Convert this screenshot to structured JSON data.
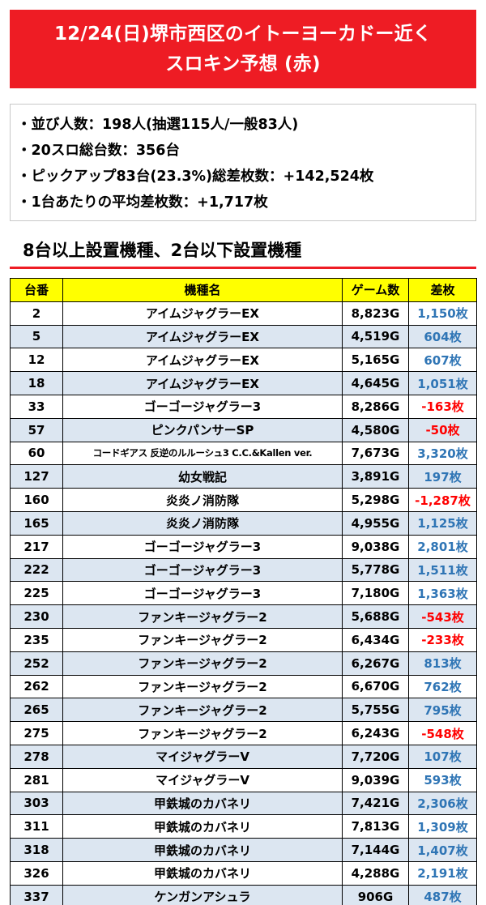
{
  "title": {
    "line1": "12/24(日)堺市西区のイトーヨーカドー近く",
    "line2": "スロキン予想 (赤)"
  },
  "summary": [
    "・並び人数：198人(抽選115人/一般83人)",
    "・20スロ総台数：356台",
    "・ピックアップ83台(23.3%)総差枚数：+142,524枚",
    "・1台あたりの平均差枚数：+1,717枚"
  ],
  "section_heading": "8台以上設置機種、2台以下設置機種",
  "table": {
    "headers": [
      "台番",
      "機種名",
      "ゲーム数",
      "差枚"
    ],
    "rows": [
      {
        "no": "2",
        "name": "アイムジャグラーEX",
        "games": "8,823G",
        "diff": "1,150枚",
        "sign": "pos"
      },
      {
        "no": "5",
        "name": "アイムジャグラーEX",
        "games": "4,519G",
        "diff": "604枚",
        "sign": "pos"
      },
      {
        "no": "12",
        "name": "アイムジャグラーEX",
        "games": "5,165G",
        "diff": "607枚",
        "sign": "pos"
      },
      {
        "no": "18",
        "name": "アイムジャグラーEX",
        "games": "4,645G",
        "diff": "1,051枚",
        "sign": "pos"
      },
      {
        "no": "33",
        "name": "ゴーゴージャグラー3",
        "games": "8,286G",
        "diff": "-163枚",
        "sign": "neg"
      },
      {
        "no": "57",
        "name": "ピンクパンサーSP",
        "games": "4,580G",
        "diff": "-50枚",
        "sign": "neg"
      },
      {
        "no": "60",
        "name": "コードギアス 反逆のルルーシュ3 C.C.&Kallen ver.",
        "games": "7,673G",
        "diff": "3,320枚",
        "sign": "pos",
        "small": true
      },
      {
        "no": "127",
        "name": "幼女戦記",
        "games": "3,891G",
        "diff": "197枚",
        "sign": "pos"
      },
      {
        "no": "160",
        "name": "炎炎ノ消防隊",
        "games": "5,298G",
        "diff": "-1,287枚",
        "sign": "neg"
      },
      {
        "no": "165",
        "name": "炎炎ノ消防隊",
        "games": "4,955G",
        "diff": "1,125枚",
        "sign": "pos"
      },
      {
        "no": "217",
        "name": "ゴーゴージャグラー3",
        "games": "9,038G",
        "diff": "2,801枚",
        "sign": "pos"
      },
      {
        "no": "222",
        "name": "ゴーゴージャグラー3",
        "games": "5,778G",
        "diff": "1,511枚",
        "sign": "pos"
      },
      {
        "no": "225",
        "name": "ゴーゴージャグラー3",
        "games": "7,180G",
        "diff": "1,363枚",
        "sign": "pos"
      },
      {
        "no": "230",
        "name": "ファンキージャグラー2",
        "games": "5,688G",
        "diff": "-543枚",
        "sign": "neg"
      },
      {
        "no": "235",
        "name": "ファンキージャグラー2",
        "games": "6,434G",
        "diff": "-233枚",
        "sign": "neg"
      },
      {
        "no": "252",
        "name": "ファンキージャグラー2",
        "games": "6,267G",
        "diff": "813枚",
        "sign": "pos"
      },
      {
        "no": "262",
        "name": "ファンキージャグラー2",
        "games": "6,670G",
        "diff": "762枚",
        "sign": "pos"
      },
      {
        "no": "265",
        "name": "ファンキージャグラー2",
        "games": "5,755G",
        "diff": "795枚",
        "sign": "pos"
      },
      {
        "no": "275",
        "name": "ファンキージャグラー2",
        "games": "6,243G",
        "diff": "-548枚",
        "sign": "neg"
      },
      {
        "no": "278",
        "name": "マイジャグラーV",
        "games": "7,720G",
        "diff": "107枚",
        "sign": "pos"
      },
      {
        "no": "281",
        "name": "マイジャグラーV",
        "games": "9,039G",
        "diff": "593枚",
        "sign": "pos"
      },
      {
        "no": "303",
        "name": "甲鉄城のカバネリ",
        "games": "7,421G",
        "diff": "2,306枚",
        "sign": "pos"
      },
      {
        "no": "311",
        "name": "甲鉄城のカバネリ",
        "games": "7,813G",
        "diff": "1,309枚",
        "sign": "pos"
      },
      {
        "no": "318",
        "name": "甲鉄城のカバネリ",
        "games": "7,144G",
        "diff": "1,407枚",
        "sign": "pos"
      },
      {
        "no": "326",
        "name": "甲鉄城のカバネリ",
        "games": "4,288G",
        "diff": "2,191枚",
        "sign": "pos"
      },
      {
        "no": "337",
        "name": "ケンガンアシュラ",
        "games": "906G",
        "diff": "487枚",
        "sign": "pos"
      }
    ]
  },
  "colors": {
    "banner": "#ee1c24",
    "header_fill": "#ffff00",
    "row_shade": "#dce6f1",
    "positive": "#2f75b5",
    "negative": "#ff0000"
  }
}
